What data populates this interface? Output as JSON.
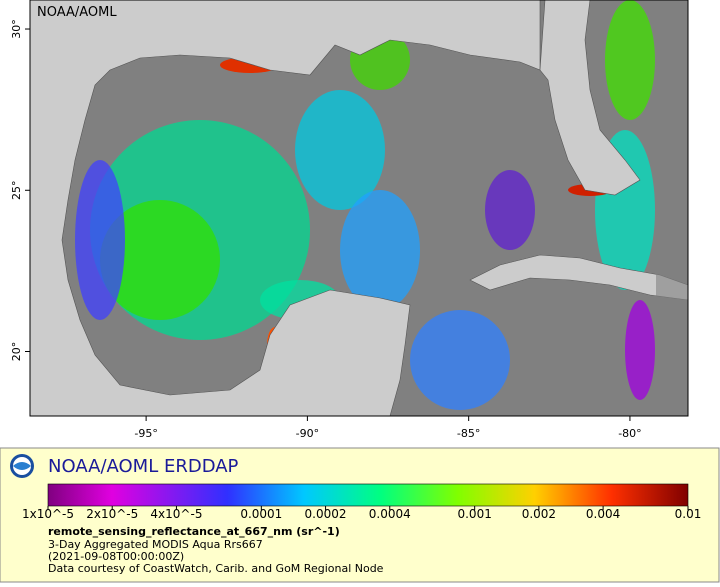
{
  "map": {
    "label": "NOAA/AOML",
    "xlim": [
      -98.6,
      -78.2
    ],
    "ylim": [
      18.0,
      30.9
    ],
    "xticks": [
      {
        "value": -95,
        "label": "-95°"
      },
      {
        "value": -90,
        "label": "-90°"
      },
      {
        "value": -85,
        "label": "-85°"
      },
      {
        "value": -80,
        "label": "-80°"
      }
    ],
    "yticks": [
      {
        "value": 20,
        "label": "20°"
      },
      {
        "value": 25,
        "label": "25°"
      },
      {
        "value": 30,
        "label": "30°"
      }
    ]
  },
  "legend": {
    "title": "NOAA/AOML ERDDAP",
    "scale": "log",
    "clim": [
      1e-05,
      0.01
    ],
    "ticks": [
      {
        "value": 1e-05,
        "label": "1x10^-5"
      },
      {
        "value": 2e-05,
        "label": "2x10^-5"
      },
      {
        "value": 4e-05,
        "label": "4x10^-5"
      },
      0.0001,
      0.0002,
      0.0004,
      0.001,
      0.002,
      0.004,
      0.01
    ],
    "variable": "remote_sensing_reflectance_at_667_nm (sr^-1)",
    "lines": [
      "3-Day Aggregated MODIS Aqua Rrs667",
      "(2021-09-08T00:00:00Z)",
      "Data courtesy of CoastWatch, Carib. and GoM Regional Node"
    ]
  }
}
